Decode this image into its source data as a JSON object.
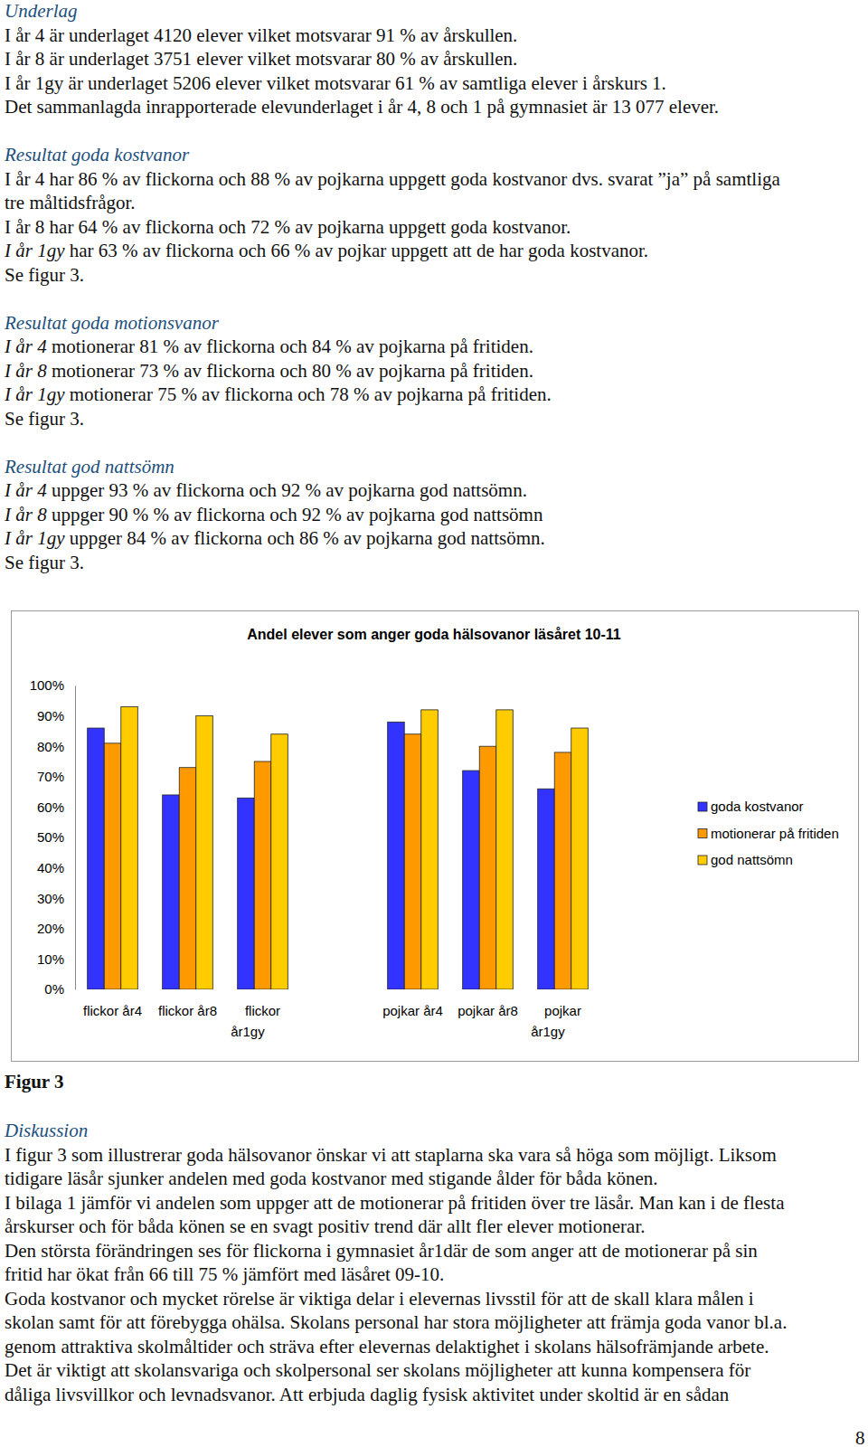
{
  "sections": [
    {
      "heading": "Underlag",
      "lines": [
        "I år 4 är underlaget 4120 elever vilket motsvarar 91 % av årskullen.",
        "I år 8 är underlaget 3751 elever vilket motsvarar 80 % av årskullen.",
        "I år 1gy är underlaget 5206 elever vilket motsvarar 61 % av samtliga elever i årskurs 1.",
        "Det sammanlagda inrapporterade elevunderlaget i år 4, 8 och 1 på gymnasiet är 13 077 elever."
      ]
    },
    {
      "heading": "Resultat goda kostvanor",
      "lines": [
        "I år 4 har 86 % av flickorna och 88 % av pojkarna uppgett goda kostvanor dvs. svarat ”ja” på samtliga",
        "tre måltidsfrågor.",
        "I år 8 har 64 % av flickorna och 72 % av pojkarna uppgett goda kostvanor.",
        {
          "em": "I år 1gy",
          "text": " har 63 % av flickorna och 66 % av pojkar uppgett att de har goda kostvanor."
        },
        "Se figur 3."
      ]
    },
    {
      "heading": "Resultat goda motionsvanor",
      "lines": [
        {
          "em": "I år 4",
          "text": " motionerar 81 % av flickorna och 84 % av pojkarna på fritiden."
        },
        {
          "em": "I år 8",
          "text": " motionerar 73 % av flickorna och 80 % av pojkarna på fritiden."
        },
        {
          "em": "I år 1gy",
          "text": " motionerar 75 % av flickorna och 78 % av pojkarna på fritiden."
        },
        "Se figur 3."
      ]
    },
    {
      "heading": "Resultat god nattsömn",
      "lines": [
        {
          "em": "I år 4",
          "text": " uppger 93 % av flickorna och 92 % av pojkarna god nattsömn."
        },
        {
          "em": "I år 8",
          "text": " uppger 90 % % av flickorna och 92 % av pojkarna god nattsömn"
        },
        {
          "em": "I år 1gy",
          "text": " uppger 84 % av flickorna och 86 % av pojkarna god nattsömn."
        },
        "Se figur 3."
      ]
    }
  ],
  "figure_caption": "Figur 3",
  "discussion": {
    "heading": "Diskussion",
    "lines": [
      "I figur 3 som illustrerar goda hälsovanor önskar vi att staplarna ska vara så höga som möjligt. Liksom",
      "tidigare läsår sjunker andelen med goda kostvanor med stigande ålder för båda könen.",
      "I bilaga 1 jämför vi andelen som uppger att de motionerar på fritiden över tre läsår. Man kan i de flesta",
      "årskurser och för båda könen se en svagt positiv trend där allt fler elever motionerar.",
      "Den största förändringen ses för flickorna i gymnasiet år1där de som anger att de motionerar på sin",
      "fritid har ökat från 66 till 75 % jämfört med läsåret 09-10.",
      "Goda kostvanor och mycket rörelse är viktiga delar i elevernas livsstil för att de skall klara målen i",
      "skolan samt för att förebygga ohälsa. Skolans personal har stora möjligheter att främja goda vanor bl.a.",
      "genom attraktiva skolmåltider och sträva efter elevernas delaktighet i skolans hälsofrämjande arbete.",
      "Det är viktigt att skolansvariga och skolpersonal ser skolans möjligheter att kunna kompensera för",
      "dåliga livsvillkor och levnadsvanor. Att erbjuda daglig fysisk aktivitet under skoltid är en sådan"
    ]
  },
  "page_number": 8,
  "chart_data": {
    "type": "bar",
    "title": "Andel elever som anger goda hälsovanor läsåret 10-11",
    "categories": [
      "flickor år4",
      "flickor år8",
      "flickor\når1gy",
      null,
      "pojkar år4",
      "pojkar år8",
      "pojkar\når1gy"
    ],
    "series": [
      {
        "name": "goda kostvanor",
        "color": "#3333ff",
        "values": [
          86,
          64,
          63,
          null,
          88,
          72,
          66
        ]
      },
      {
        "name": "motionerar på fritiden",
        "color": "#ff9900",
        "values": [
          81,
          73,
          75,
          null,
          84,
          80,
          78
        ]
      },
      {
        "name": "god nattsömn",
        "color": "#ffcc00",
        "values": [
          93,
          90,
          84,
          null,
          92,
          92,
          86
        ]
      }
    ],
    "ylim": [
      0,
      100
    ],
    "yticks": [
      {
        "value": 0,
        "label": "0%"
      },
      {
        "value": 10,
        "label": "10%"
      },
      {
        "value": 20,
        "label": "20%"
      },
      {
        "value": 30,
        "label": "30%"
      },
      {
        "value": 40,
        "label": "40%"
      },
      {
        "value": 50,
        "label": "50%"
      },
      {
        "value": 60,
        "label": "60%"
      },
      {
        "value": 70,
        "label": "70%"
      },
      {
        "value": 80,
        "label": "80%"
      },
      {
        "value": 90,
        "label": "90%"
      },
      {
        "value": 100,
        "label": "100%"
      }
    ],
    "grid": false,
    "legend": "right"
  }
}
